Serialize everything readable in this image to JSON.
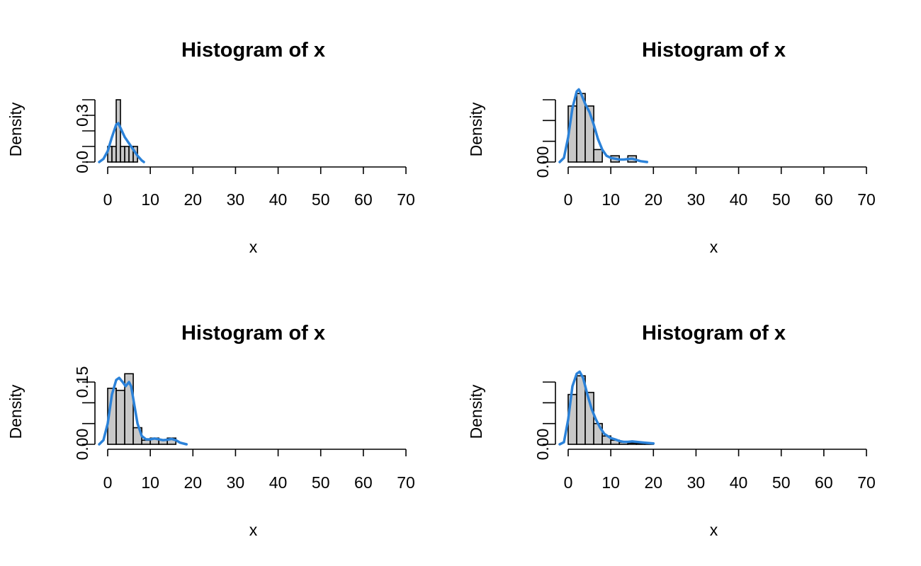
{
  "colors": {
    "bar_fill": "#c8c8c8",
    "bar_stroke": "#000000",
    "density_line": "#2b82d9",
    "background": "#ffffff"
  },
  "chart_data": [
    {
      "type": "bar",
      "title": "Histogram of x",
      "xlabel": "x",
      "ylabel": "Density",
      "xlim": [
        0,
        70
      ],
      "xticks": [
        0,
        10,
        20,
        30,
        40,
        50,
        60,
        70
      ],
      "ylim": [
        0,
        0.4
      ],
      "yticks": [
        0,
        0.1,
        0.2,
        0.3,
        0.4
      ],
      "ytick_labels": [
        {
          "value": 0.0,
          "label": "0.0"
        },
        {
          "value": 0.3,
          "label": "0.3"
        }
      ],
      "bins": [
        {
          "x0": 0,
          "x1": 1,
          "density": 0.1
        },
        {
          "x0": 1,
          "x1": 2,
          "density": 0.1
        },
        {
          "x0": 2,
          "x1": 3,
          "density": 0.4
        },
        {
          "x0": 3,
          "x1": 4,
          "density": 0.1
        },
        {
          "x0": 4,
          "x1": 5,
          "density": 0.1
        },
        {
          "x0": 5,
          "x1": 6,
          "density": 0.1
        },
        {
          "x0": 6,
          "x1": 7,
          "density": 0.1
        }
      ],
      "density_curve": {
        "x": [
          -2,
          -1,
          0,
          1,
          2,
          2.5,
          3,
          4,
          5,
          6,
          7,
          8,
          8.5
        ],
        "y": [
          0.0,
          0.02,
          0.07,
          0.16,
          0.24,
          0.25,
          0.22,
          0.16,
          0.12,
          0.08,
          0.04,
          0.01,
          0.0
        ]
      }
    },
    {
      "type": "bar",
      "title": "Histogram of x",
      "xlabel": "x",
      "ylabel": "Density",
      "xlim": [
        0,
        70
      ],
      "xticks": [
        0,
        10,
        20,
        30,
        40,
        50,
        60,
        70
      ],
      "ylim": [
        0,
        0.15
      ],
      "yticks": [
        0,
        0.05,
        0.1,
        0.15
      ],
      "ytick_labels": [
        {
          "value": 0.0,
          "label": "0.00"
        }
      ],
      "bins": [
        {
          "x0": 0,
          "x1": 2,
          "density": 0.135
        },
        {
          "x0": 2,
          "x1": 4,
          "density": 0.165
        },
        {
          "x0": 4,
          "x1": 6,
          "density": 0.135
        },
        {
          "x0": 6,
          "x1": 8,
          "density": 0.03
        },
        {
          "x0": 8,
          "x1": 10,
          "density": 0.0
        },
        {
          "x0": 10,
          "x1": 12,
          "density": 0.015
        },
        {
          "x0": 12,
          "x1": 14,
          "density": 0.0
        },
        {
          "x0": 14,
          "x1": 16,
          "density": 0.015
        }
      ],
      "density_curve": {
        "x": [
          -2,
          -1,
          0,
          1,
          2,
          2.5,
          3,
          4,
          5,
          6,
          7,
          8,
          9,
          10,
          11,
          12,
          13,
          14,
          15,
          16,
          17,
          18.5
        ],
        "y": [
          0.0,
          0.01,
          0.06,
          0.13,
          0.17,
          0.175,
          0.165,
          0.14,
          0.12,
          0.09,
          0.055,
          0.03,
          0.015,
          0.01,
          0.008,
          0.006,
          0.006,
          0.007,
          0.008,
          0.005,
          0.002,
          0.0
        ]
      }
    },
    {
      "type": "bar",
      "title": "Histogram of x",
      "xlabel": "x",
      "ylabel": "Density",
      "xlim": [
        0,
        70
      ],
      "xticks": [
        0,
        10,
        20,
        30,
        40,
        50,
        60,
        70
      ],
      "ylim": [
        0,
        0.15
      ],
      "yticks": [
        0,
        0.05,
        0.1,
        0.15
      ],
      "ytick_labels": [
        {
          "value": 0.0,
          "label": "0.00"
        },
        {
          "value": 0.15,
          "label": "0.15"
        }
      ],
      "bins": [
        {
          "x0": 0,
          "x1": 2,
          "density": 0.135
        },
        {
          "x0": 2,
          "x1": 4,
          "density": 0.13
        },
        {
          "x0": 4,
          "x1": 6,
          "density": 0.17
        },
        {
          "x0": 6,
          "x1": 8,
          "density": 0.04
        },
        {
          "x0": 8,
          "x1": 10,
          "density": 0.01
        },
        {
          "x0": 10,
          "x1": 12,
          "density": 0.015
        },
        {
          "x0": 12,
          "x1": 14,
          "density": 0.01
        },
        {
          "x0": 14,
          "x1": 16,
          "density": 0.015
        }
      ],
      "density_curve": {
        "x": [
          -2,
          -1,
          0,
          1,
          2,
          2.7,
          3.5,
          4.2,
          5,
          5.5,
          6,
          7,
          8,
          9,
          10,
          11,
          12,
          13,
          14,
          15,
          16,
          17,
          18.5
        ],
        "y": [
          0.0,
          0.01,
          0.05,
          0.12,
          0.155,
          0.16,
          0.15,
          0.14,
          0.15,
          0.14,
          0.11,
          0.05,
          0.02,
          0.012,
          0.012,
          0.014,
          0.012,
          0.01,
          0.011,
          0.013,
          0.01,
          0.004,
          0.0
        ]
      }
    },
    {
      "type": "bar",
      "title": "Histogram of x",
      "xlabel": "x",
      "ylabel": "Density",
      "xlim": [
        0,
        70
      ],
      "xticks": [
        0,
        10,
        20,
        30,
        40,
        50,
        60,
        70
      ],
      "ylim": [
        0,
        0.15
      ],
      "yticks": [
        0,
        0.05,
        0.1,
        0.15
      ],
      "ytick_labels": [
        {
          "value": 0.0,
          "label": "0.00"
        }
      ],
      "bins": [
        {
          "x0": 0,
          "x1": 2,
          "density": 0.12
        },
        {
          "x0": 2,
          "x1": 4,
          "density": 0.165
        },
        {
          "x0": 4,
          "x1": 6,
          "density": 0.125
        },
        {
          "x0": 6,
          "x1": 8,
          "density": 0.05
        },
        {
          "x0": 8,
          "x1": 10,
          "density": 0.02
        },
        {
          "x0": 10,
          "x1": 12,
          "density": 0.01
        },
        {
          "x0": 12,
          "x1": 14,
          "density": 0.005
        },
        {
          "x0": 14,
          "x1": 16,
          "density": 0.003
        },
        {
          "x0": 16,
          "x1": 18,
          "density": 0.002
        },
        {
          "x0": 18,
          "x1": 20,
          "density": 0.002
        }
      ],
      "density_curve": {
        "x": [
          -2,
          -1,
          0,
          1,
          2,
          2.7,
          3.5,
          4.5,
          5.5,
          6.5,
          7.5,
          8.5,
          10,
          11,
          12,
          13,
          14,
          15,
          16,
          17,
          18,
          19,
          20
        ],
        "y": [
          0.0,
          0.005,
          0.06,
          0.14,
          0.17,
          0.175,
          0.16,
          0.12,
          0.085,
          0.06,
          0.04,
          0.025,
          0.015,
          0.012,
          0.008,
          0.006,
          0.006,
          0.007,
          0.006,
          0.005,
          0.004,
          0.003,
          0.002
        ]
      }
    }
  ]
}
